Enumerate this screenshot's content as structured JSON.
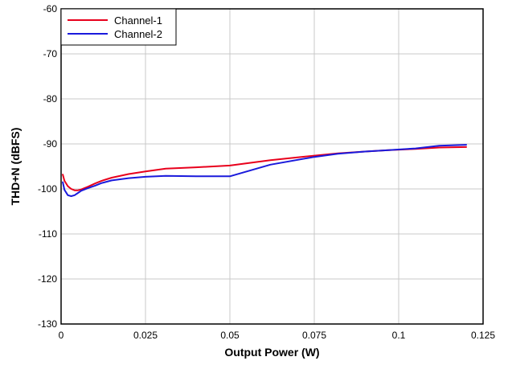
{
  "chart_data": {
    "type": "line",
    "title": "",
    "xlabel": "Output Power (W)",
    "ylabel": "THD+N (dBFS)",
    "xlim": [
      0,
      0.125
    ],
    "ylim": [
      -130,
      -60
    ],
    "x_ticks": [
      0,
      0.025,
      0.05,
      0.075,
      0.1,
      0.125
    ],
    "x_tick_labels": [
      "0",
      "0.025",
      "0.05",
      "0.075",
      "0.1",
      "0.125"
    ],
    "y_ticks": [
      -130,
      -120,
      -110,
      -100,
      -90,
      -80,
      -70,
      -60
    ],
    "y_tick_labels": [
      "-130",
      "-120",
      "-110",
      "-100",
      "-90",
      "-80",
      "-70",
      "-60"
    ],
    "grid": true,
    "legend_position": "top-left",
    "series": [
      {
        "name": "Channel-1",
        "color": "#e8001c",
        "x": [
          0.0005,
          0.001,
          0.002,
          0.003,
          0.004,
          0.005,
          0.006,
          0.008,
          0.01,
          0.012,
          0.015,
          0.02,
          0.025,
          0.031,
          0.04,
          0.05,
          0.062,
          0.075,
          0.082,
          0.09,
          0.097,
          0.105,
          0.112,
          0.12
        ],
        "values": [
          -96.8,
          -98.2,
          -99.4,
          -100.0,
          -100.3,
          -100.3,
          -100.1,
          -99.5,
          -98.8,
          -98.2,
          -97.5,
          -96.7,
          -96.1,
          -95.5,
          -95.2,
          -94.8,
          -93.6,
          -92.6,
          -92.1,
          -91.7,
          -91.4,
          -91.1,
          -90.8,
          -90.7
        ]
      },
      {
        "name": "Channel-2",
        "color": "#1a1adc",
        "x": [
          0.0005,
          0.001,
          0.002,
          0.003,
          0.004,
          0.005,
          0.006,
          0.008,
          0.01,
          0.012,
          0.015,
          0.02,
          0.025,
          0.031,
          0.04,
          0.05,
          0.062,
          0.075,
          0.082,
          0.09,
          0.097,
          0.105,
          0.112,
          0.12
        ],
        "values": [
          -98.5,
          -100.2,
          -101.4,
          -101.6,
          -101.4,
          -100.9,
          -100.4,
          -99.8,
          -99.3,
          -98.7,
          -98.1,
          -97.6,
          -97.3,
          -97.1,
          -97.2,
          -97.2,
          -94.6,
          -92.9,
          -92.2,
          -91.7,
          -91.4,
          -91.0,
          -90.4,
          -90.2
        ]
      }
    ]
  }
}
